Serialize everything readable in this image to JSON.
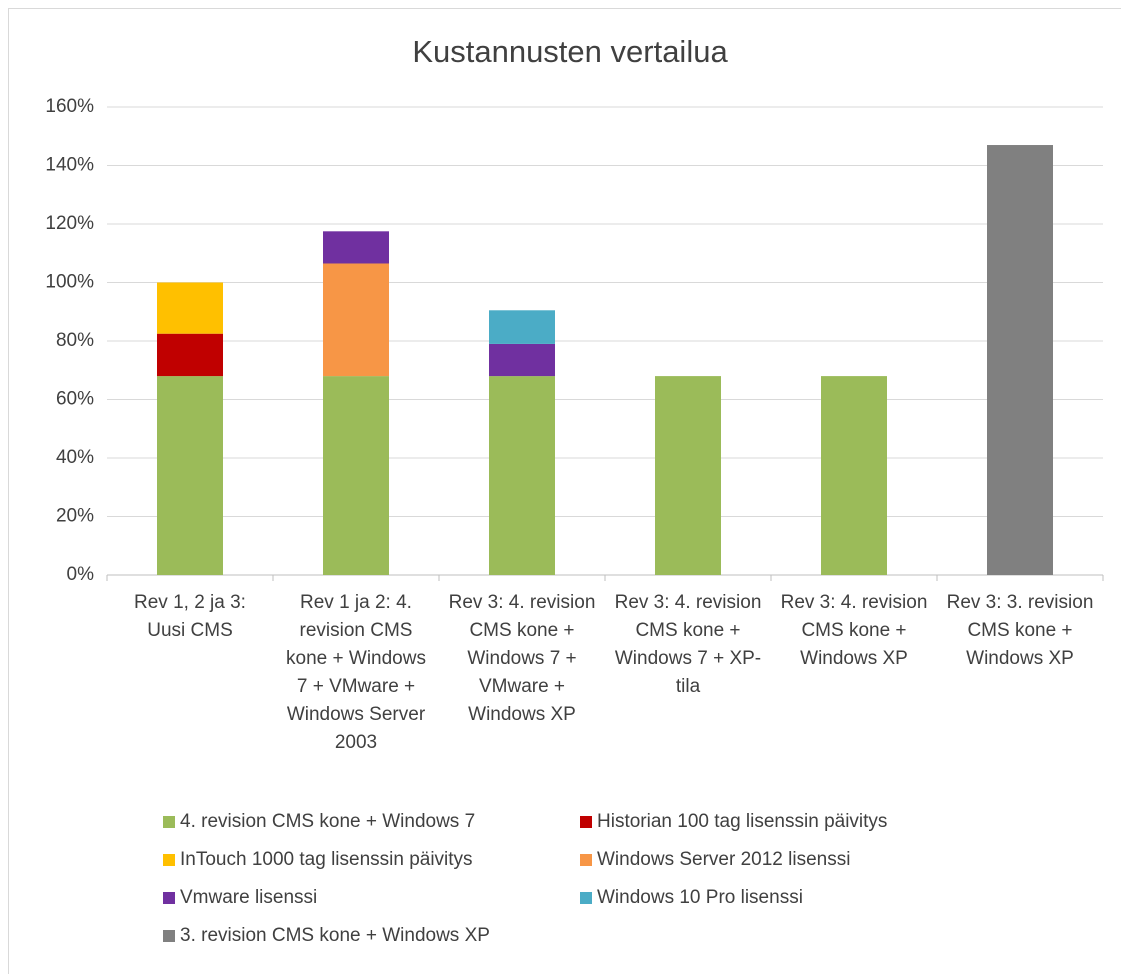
{
  "chart_data": {
    "type": "stacked_bar",
    "title": "Kustannusten vertailua",
    "categories": [
      "Rev 1, 2 ja 3: Uusi CMS",
      "Rev 1 ja 2: 4. revision CMS kone + Windows 7 + VMware + Windows Server 2003",
      "Rev 3: 4. revision CMS kone + Windows 7 + VMware + Windows XP",
      "Rev 3: 4. revision CMS kone + Windows 7 + XP-tila",
      "Rev 3: 4. revision CMS kone + Windows XP",
      "Rev 3: 3. revision CMS kone + Windows XP"
    ],
    "series": [
      {
        "name": "4. revision CMS kone + Windows 7",
        "color": "#9bbb59",
        "values": [
          68,
          68,
          68,
          68,
          68,
          null
        ]
      },
      {
        "name": "Historian 100 tag lisenssin päivitys",
        "color": "#c00000",
        "values": [
          14.5,
          null,
          null,
          null,
          null,
          null
        ]
      },
      {
        "name": "InTouch 1000 tag lisenssin päivitys",
        "color": "#ffc000",
        "values": [
          17.5,
          null,
          null,
          null,
          null,
          null
        ]
      },
      {
        "name": "Windows Server 2012 lisenssi",
        "color": "#f79646",
        "values": [
          null,
          38.5,
          null,
          null,
          null,
          null
        ]
      },
      {
        "name": "Vmware lisenssi",
        "color": "#7030a0",
        "values": [
          null,
          11,
          11,
          null,
          null,
          null
        ]
      },
      {
        "name": "Windows 10 Pro lisenssi",
        "color": "#4bacc6",
        "values": [
          null,
          null,
          11.5,
          null,
          null,
          null
        ]
      },
      {
        "name": "3. revision CMS kone + Windows XP",
        "color": "#808080",
        "values": [
          null,
          null,
          null,
          null,
          null,
          147
        ]
      }
    ],
    "ylim": [
      0,
      160
    ],
    "yticks": [
      {
        "value": 0,
        "label": "0%"
      },
      {
        "value": 20,
        "label": "20%"
      },
      {
        "value": 40,
        "label": "40%"
      },
      {
        "value": 60,
        "label": "60%"
      },
      {
        "value": 80,
        "label": "80%"
      },
      {
        "value": 100,
        "label": "100%"
      },
      {
        "value": 120,
        "label": "120%"
      },
      {
        "value": 140,
        "label": "140%"
      },
      {
        "value": 160,
        "label": "160%"
      }
    ],
    "grid": true,
    "legend": "bottom"
  }
}
